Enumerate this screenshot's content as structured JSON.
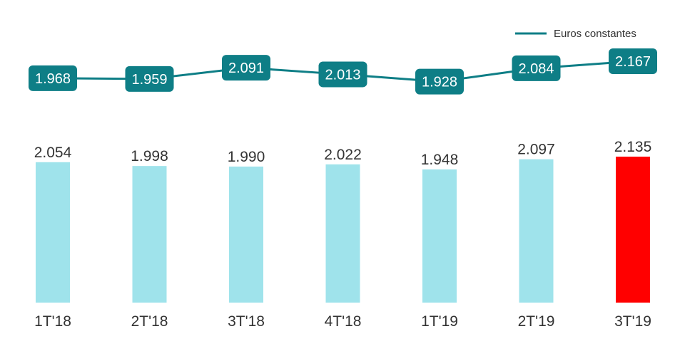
{
  "chart_data": {
    "type": "bar",
    "categories": [
      "1T'18",
      "2T'18",
      "3T'18",
      "4T'18",
      "1T'19",
      "2T'19",
      "3T'19"
    ],
    "values": [
      2054,
      1998,
      1990,
      2022,
      1948,
      2097,
      2135
    ],
    "value_labels": [
      "2.054",
      "1.998",
      "1.990",
      "2.022",
      "1.948",
      "2.097",
      "2.135"
    ],
    "bar_colors": [
      "#9fe3eb",
      "#9fe3eb",
      "#9fe3eb",
      "#9fe3eb",
      "#9fe3eb",
      "#9fe3eb",
      "#ff0000"
    ],
    "line_series": {
      "name": "Euros constantes",
      "type": "line",
      "color": "#0e7e86",
      "values": [
        1968,
        1959,
        2091,
        2013,
        1928,
        2084,
        2167
      ],
      "value_labels": [
        "1.968",
        "1.959",
        "2.091",
        "2.013",
        "1.928",
        "2.084",
        "2.167"
      ]
    },
    "legend_position": "top-right",
    "grid": false
  }
}
